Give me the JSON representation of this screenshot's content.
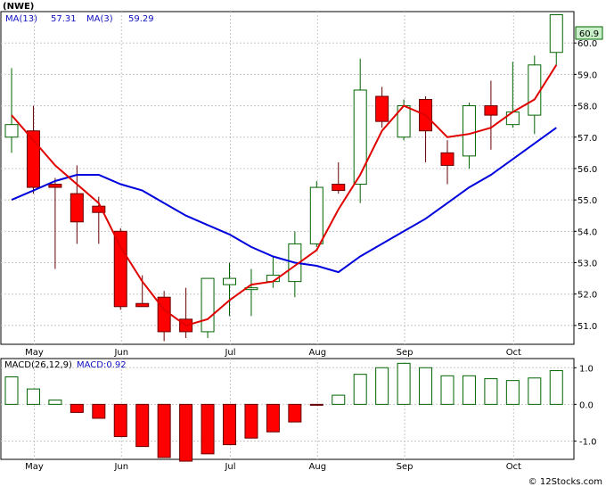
{
  "ticker": "(NWE)",
  "footer": "© 12Stocks.com",
  "colors": {
    "up": "#ffffff",
    "upBorder": "#006400",
    "down": "#ff0000",
    "downBorder": "#660000",
    "ma13": "#0000dd",
    "ma3": "#e00000",
    "grid": "#c8c8c8",
    "lastPriceBox": "#c8f0c8"
  },
  "chart_data": [
    {
      "type": "candlestick",
      "title": "(NWE)",
      "legend": [
        {
          "name": "MA(13)",
          "value": "57.31",
          "color": "#0000dd"
        },
        {
          "name": "MA(3)",
          "value": "59.29",
          "color": "#e00000"
        }
      ],
      "last_price": "60.9",
      "ylim": [
        50.4,
        61.0
      ],
      "yticks": [
        51.0,
        52.0,
        53.0,
        54.0,
        55.0,
        56.0,
        57.0,
        58.0,
        59.0,
        60.0
      ],
      "ytick_labels": [
        "51.0",
        "52.0",
        "53.0",
        "54.0",
        "55.0",
        "56.0",
        "57.0",
        "58.0",
        "59.0",
        "60.0"
      ],
      "xtick_labels": [
        "May",
        "Jun",
        "Jul",
        "Aug",
        "Sep",
        "Oct"
      ],
      "xtick_index": [
        1,
        5,
        10,
        14,
        18,
        23
      ],
      "candles": [
        {
          "o": 57.0,
          "h": 59.2,
          "l": 56.5,
          "c": 57.4
        },
        {
          "o": 57.2,
          "h": 58.0,
          "l": 55.2,
          "c": 55.4
        },
        {
          "o": 55.5,
          "h": 55.7,
          "l": 52.8,
          "c": 55.4
        },
        {
          "o": 55.2,
          "h": 56.1,
          "l": 53.6,
          "c": 54.3
        },
        {
          "o": 54.8,
          "h": 55.1,
          "l": 53.6,
          "c": 54.6
        },
        {
          "o": 54.0,
          "h": 54.1,
          "l": 51.5,
          "c": 51.6
        },
        {
          "o": 51.7,
          "h": 52.6,
          "l": 51.6,
          "c": 51.6
        },
        {
          "o": 51.9,
          "h": 52.1,
          "l": 50.5,
          "c": 50.8
        },
        {
          "o": 51.2,
          "h": 52.2,
          "l": 50.6,
          "c": 50.8
        },
        {
          "o": 50.8,
          "h": 52.5,
          "l": 50.6,
          "c": 52.5
        },
        {
          "o": 52.3,
          "h": 53.0,
          "l": 51.3,
          "c": 52.5
        },
        {
          "o": 52.2,
          "h": 52.8,
          "l": 51.3,
          "c": 52.2
        },
        {
          "o": 52.4,
          "h": 53.2,
          "l": 52.2,
          "c": 52.6
        },
        {
          "o": 52.4,
          "h": 54.0,
          "l": 51.9,
          "c": 53.6
        },
        {
          "o": 53.6,
          "h": 55.6,
          "l": 53.5,
          "c": 55.4
        },
        {
          "o": 55.5,
          "h": 56.2,
          "l": 55.2,
          "c": 55.3
        },
        {
          "o": 55.5,
          "h": 59.5,
          "l": 54.9,
          "c": 58.5
        },
        {
          "o": 58.3,
          "h": 58.6,
          "l": 57.3,
          "c": 57.5
        },
        {
          "o": 57.0,
          "h": 58.2,
          "l": 56.9,
          "c": 58.0
        },
        {
          "o": 58.2,
          "h": 58.3,
          "l": 56.2,
          "c": 57.2
        },
        {
          "o": 56.5,
          "h": 56.9,
          "l": 55.5,
          "c": 56.1
        },
        {
          "o": 56.4,
          "h": 58.1,
          "l": 56.0,
          "c": 58.0
        },
        {
          "o": 58.0,
          "h": 58.8,
          "l": 56.6,
          "c": 57.7
        },
        {
          "o": 57.4,
          "h": 59.4,
          "l": 57.3,
          "c": 57.8
        },
        {
          "o": 57.7,
          "h": 59.6,
          "l": 57.1,
          "c": 59.3
        },
        {
          "o": 59.7,
          "h": 60.9,
          "l": 59.3,
          "c": 60.9
        }
      ],
      "ma3": [
        [
          0,
          57.7
        ],
        [
          2,
          56.1
        ],
        [
          4,
          54.9
        ],
        [
          5,
          53.5
        ],
        [
          6,
          52.4
        ],
        [
          7,
          51.5
        ],
        [
          8,
          51.0
        ],
        [
          9,
          51.2
        ],
        [
          10,
          51.8
        ],
        [
          11,
          52.3
        ],
        [
          12,
          52.4
        ],
        [
          13,
          52.9
        ],
        [
          14,
          53.4
        ],
        [
          15,
          54.7
        ],
        [
          16,
          55.8
        ],
        [
          17,
          57.2
        ],
        [
          18,
          58.0
        ],
        [
          19,
          57.7
        ],
        [
          20,
          57.0
        ],
        [
          21,
          57.1
        ],
        [
          22,
          57.3
        ],
        [
          23,
          57.8
        ],
        [
          24,
          58.2
        ],
        [
          25,
          59.3
        ]
      ],
      "ma13": [
        [
          0,
          55.0
        ],
        [
          1,
          55.3
        ],
        [
          2,
          55.6
        ],
        [
          3,
          55.8
        ],
        [
          4,
          55.8
        ],
        [
          5,
          55.5
        ],
        [
          6,
          55.3
        ],
        [
          7,
          54.9
        ],
        [
          8,
          54.5
        ],
        [
          9,
          54.2
        ],
        [
          10,
          53.9
        ],
        [
          11,
          53.5
        ],
        [
          12,
          53.2
        ],
        [
          13,
          53.0
        ],
        [
          14,
          52.9
        ],
        [
          15,
          52.7
        ],
        [
          16,
          53.2
        ],
        [
          17,
          53.6
        ],
        [
          18,
          54.0
        ],
        [
          19,
          54.4
        ],
        [
          20,
          54.9
        ],
        [
          21,
          55.4
        ],
        [
          22,
          55.8
        ],
        [
          23,
          56.3
        ],
        [
          24,
          56.8
        ],
        [
          25,
          57.3
        ]
      ]
    },
    {
      "type": "bar",
      "legend": [
        {
          "name": "MACD(26,12,9)",
          "color": "#000000"
        },
        {
          "name": "MACD:0.92",
          "color": "#0000dd"
        }
      ],
      "ylim": [
        -1.5,
        1.25
      ],
      "yticks": [
        -1.0,
        0.0,
        1.0
      ],
      "ytick_labels": [
        "-1.0",
        "0.0",
        "1.0"
      ],
      "xtick_labels": [
        "May",
        "Jun",
        "Jul",
        "Aug",
        "Sep",
        "Oct"
      ],
      "values": [
        0.75,
        0.42,
        0.12,
        -0.22,
        -0.38,
        -0.88,
        -1.15,
        -1.45,
        -1.55,
        -1.35,
        -1.1,
        -0.92,
        -0.75,
        -0.48,
        -0.02,
        0.25,
        0.82,
        1.0,
        1.12,
        1.0,
        0.78,
        0.78,
        0.7,
        0.65,
        0.72,
        0.92
      ]
    }
  ]
}
